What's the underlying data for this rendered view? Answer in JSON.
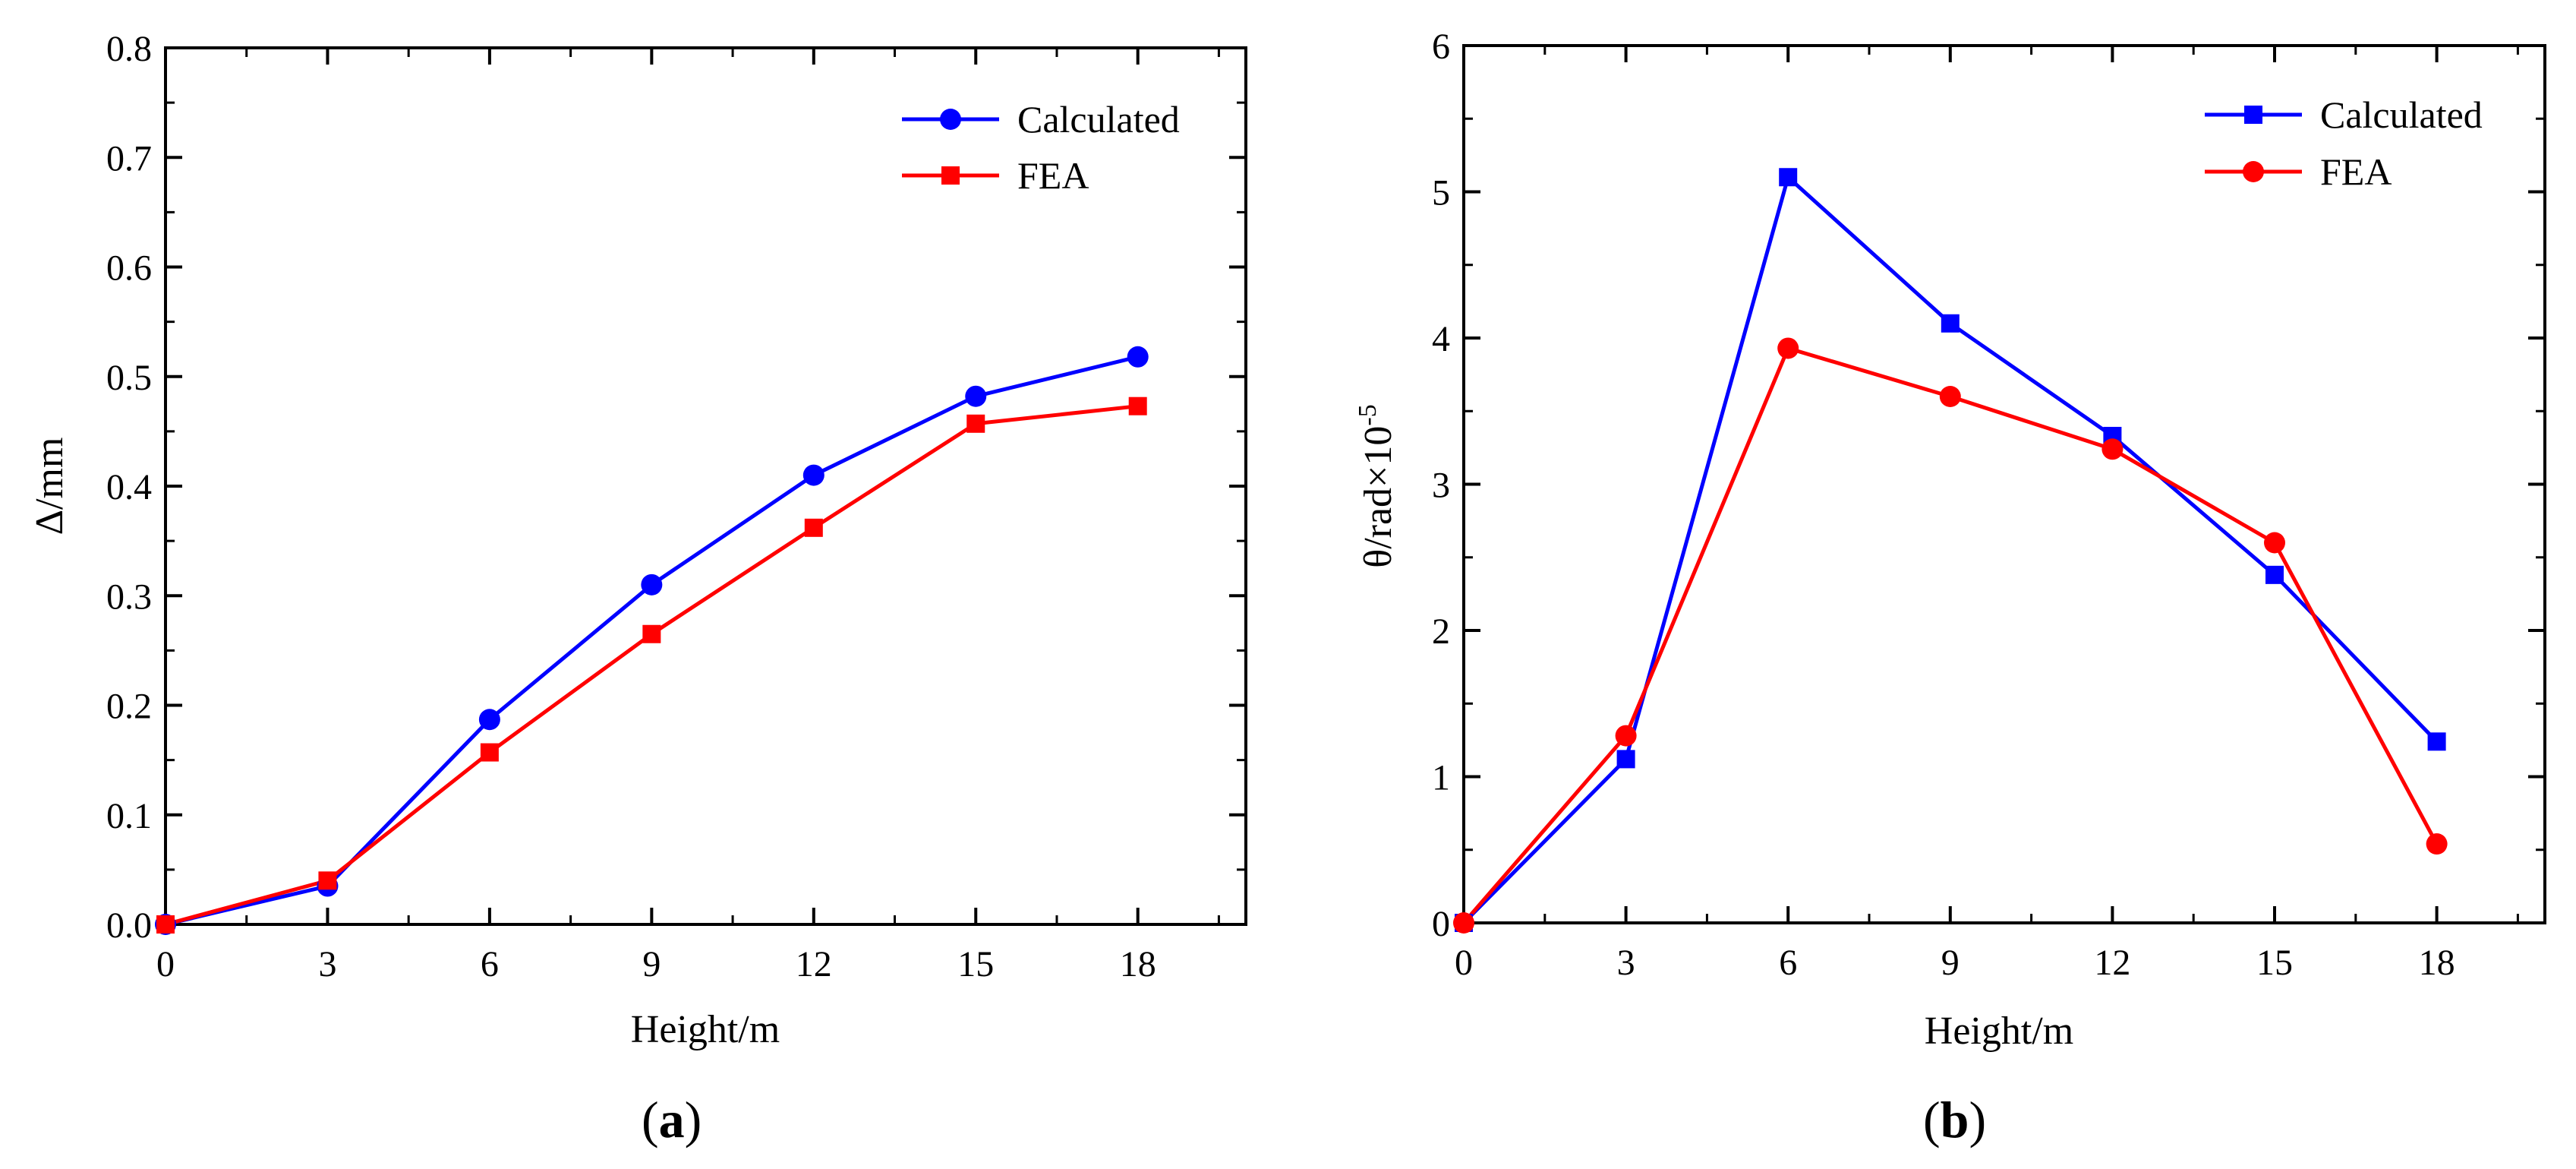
{
  "chart_data": [
    {
      "type": "line",
      "panel_label": "a",
      "xlabel": "Height/m",
      "ylabel": "Δ/mm",
      "xlim": [
        0,
        20
      ],
      "ylim": [
        0,
        0.8
      ],
      "xticks": [
        0,
        3,
        6,
        9,
        12,
        15,
        18
      ],
      "xtick_labels": [
        "0",
        "3",
        "6",
        "9",
        "12",
        "15",
        "18"
      ],
      "yticks": [
        0,
        0.1,
        0.2,
        0.3,
        0.4,
        0.5,
        0.6,
        0.7,
        0.8
      ],
      "ytick_labels": [
        "0.0",
        "0.1",
        "0.2",
        "0.3",
        "0.4",
        "0.5",
        "0.6",
        "0.7",
        "0.8"
      ],
      "legend_position": "top-right",
      "series": [
        {
          "name": "Calculated",
          "color": "#0000ff",
          "marker": "circle",
          "x": [
            0,
            3,
            6,
            9,
            12,
            15,
            18
          ],
          "values": [
            0,
            0.035,
            0.187,
            0.31,
            0.41,
            0.482,
            0.518
          ]
        },
        {
          "name": "FEA",
          "color": "#ff0000",
          "marker": "square",
          "x": [
            0,
            3,
            6,
            9,
            12,
            15,
            18
          ],
          "values": [
            0,
            0.04,
            0.157,
            0.265,
            0.362,
            0.457,
            0.473
          ]
        }
      ]
    },
    {
      "type": "line",
      "panel_label": "b",
      "xlabel": "Height/m",
      "ylabel_main": "θ/rad×10",
      "ylabel_sup": "-5",
      "xlim": [
        0,
        20
      ],
      "ylim": [
        0,
        6
      ],
      "xticks": [
        0,
        3,
        6,
        9,
        12,
        15,
        18
      ],
      "xtick_labels": [
        "0",
        "3",
        "6",
        "9",
        "12",
        "15",
        "18"
      ],
      "yticks": [
        0,
        1,
        2,
        3,
        4,
        5,
        6
      ],
      "ytick_labels": [
        "0",
        "1",
        "2",
        "3",
        "4",
        "5",
        "6"
      ],
      "legend_position": "top-right",
      "series": [
        {
          "name": "Calculated",
          "color": "#0000ff",
          "marker": "square",
          "x": [
            0,
            3,
            6,
            9,
            12,
            15,
            18
          ],
          "values": [
            0,
            1.12,
            5.1,
            4.1,
            3.33,
            2.38,
            1.24
          ]
        },
        {
          "name": "FEA",
          "color": "#ff0000",
          "marker": "circle",
          "x": [
            0,
            3,
            6,
            9,
            12,
            15,
            18
          ],
          "values": [
            0,
            1.28,
            3.93,
            3.6,
            3.24,
            2.6,
            0.54
          ]
        }
      ]
    }
  ]
}
